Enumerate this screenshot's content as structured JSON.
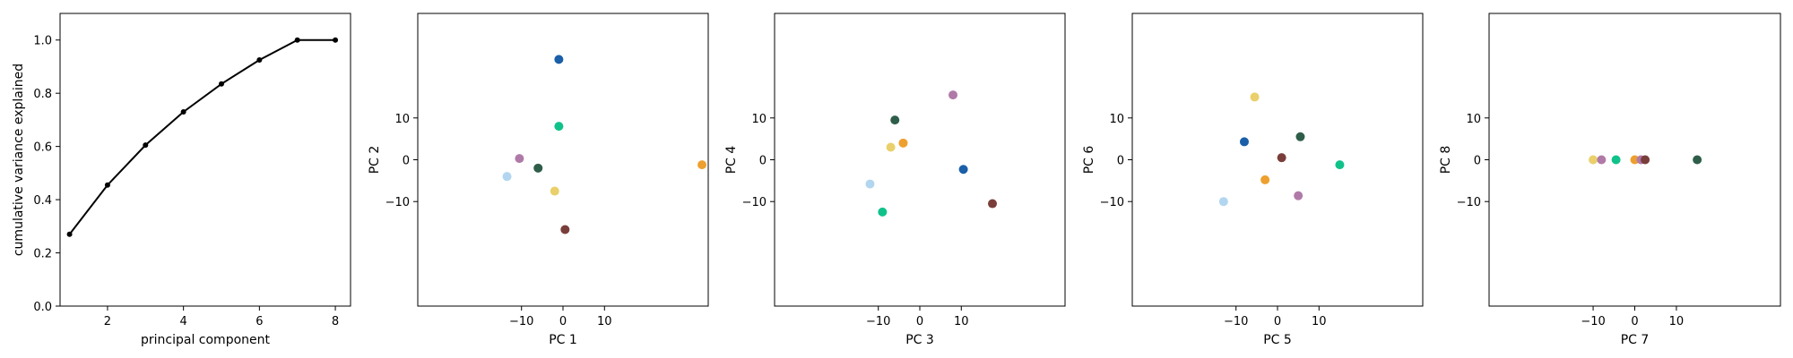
{
  "chart_data": [
    {
      "type": "line",
      "xlabel": "principal component",
      "ylabel": "cumulative variance explained",
      "xlim": [
        0.75,
        8.4
      ],
      "ylim": [
        0.0,
        1.1
      ],
      "xticks": [
        "2",
        "4",
        "6",
        "8"
      ],
      "yticks": [
        "0.0",
        "0.2",
        "0.4",
        "0.6",
        "0.8",
        "1.0"
      ],
      "x": [
        1,
        2,
        3,
        4,
        5,
        6,
        7,
        8
      ],
      "y": [
        0.27,
        0.455,
        0.605,
        0.73,
        0.835,
        0.925,
        1.0,
        1.0
      ],
      "line_color": "#000000"
    },
    {
      "type": "scatter",
      "xlabel": "PC 1",
      "ylabel": "PC 2",
      "xlim": [
        -35,
        35
      ],
      "ylim": [
        -35,
        35
      ],
      "xticks": [
        "−10",
        "0",
        "10"
      ],
      "yticks": [
        "−10",
        "0",
        "10"
      ],
      "points": [
        {
          "x": -1,
          "y": 24,
          "color": "#1a5fa8"
        },
        {
          "x": -1,
          "y": 8,
          "color": "#10c28a"
        },
        {
          "x": -10.5,
          "y": 0.3,
          "color": "#b07aa8"
        },
        {
          "x": -13.5,
          "y": -4,
          "color": "#b2d6f0"
        },
        {
          "x": -6,
          "y": -2,
          "color": "#2e5e4a"
        },
        {
          "x": -2,
          "y": -7.5,
          "color": "#ead06a"
        },
        {
          "x": 0.5,
          "y": -16.7,
          "color": "#7a3e3a"
        },
        {
          "x": 33.5,
          "y": -1.2,
          "color": "#eda02f"
        }
      ]
    },
    {
      "type": "scatter",
      "xlabel": "PC 3",
      "ylabel": "PC 4",
      "xlim": [
        -35,
        35
      ],
      "ylim": [
        -35,
        35
      ],
      "xticks": [
        "−10",
        "0",
        "10"
      ],
      "yticks": [
        "−10",
        "0",
        "10"
      ],
      "points": [
        {
          "x": 8,
          "y": 15.5,
          "color": "#b07aa8"
        },
        {
          "x": -6,
          "y": 9.5,
          "color": "#2e5e4a"
        },
        {
          "x": -4,
          "y": 4,
          "color": "#eda02f"
        },
        {
          "x": -7,
          "y": 3,
          "color": "#ead06a"
        },
        {
          "x": 10.5,
          "y": -2.3,
          "color": "#1a5fa8"
        },
        {
          "x": -12,
          "y": -5.8,
          "color": "#b2d6f0"
        },
        {
          "x": -9,
          "y": -12.5,
          "color": "#10c28a"
        },
        {
          "x": 17.5,
          "y": -10.5,
          "color": "#7a3e3a"
        }
      ]
    },
    {
      "type": "scatter",
      "xlabel": "PC 5",
      "ylabel": "PC 6",
      "xlim": [
        -35,
        35
      ],
      "ylim": [
        -35,
        35
      ],
      "xticks": [
        "−10",
        "0",
        "10"
      ],
      "yticks": [
        "−10",
        "0",
        "10"
      ],
      "points": [
        {
          "x": -5.5,
          "y": 15,
          "color": "#ead06a"
        },
        {
          "x": 5.5,
          "y": 5.5,
          "color": "#2e5e4a"
        },
        {
          "x": -8,
          "y": 4.3,
          "color": "#1a5fa8"
        },
        {
          "x": 1,
          "y": 0.5,
          "color": "#7a3e3a"
        },
        {
          "x": 15,
          "y": -1.2,
          "color": "#10c28a"
        },
        {
          "x": -3,
          "y": -4.8,
          "color": "#eda02f"
        },
        {
          "x": 5,
          "y": -8.6,
          "color": "#b07aa8"
        },
        {
          "x": -13,
          "y": -10,
          "color": "#b2d6f0"
        }
      ]
    },
    {
      "type": "scatter",
      "xlabel": "PC 7",
      "ylabel": "PC 8",
      "xlim": [
        -35,
        35
      ],
      "ylim": [
        -35,
        35
      ],
      "xticks": [
        "−10",
        "0",
        "10"
      ],
      "yticks": [
        "−10",
        "0",
        "10"
      ],
      "points": [
        {
          "x": -10,
          "y": 0,
          "color": "#ead06a"
        },
        {
          "x": -8,
          "y": 0,
          "color": "#b07aa8"
        },
        {
          "x": -4.5,
          "y": 0,
          "color": "#10c28a"
        },
        {
          "x": 0,
          "y": 0,
          "color": "#eda02f"
        },
        {
          "x": 1.5,
          "y": 0,
          "color": "#b07aa8"
        },
        {
          "x": 2.5,
          "y": 0,
          "color": "#7a3e3a"
        },
        {
          "x": 15,
          "y": 0,
          "color": "#2e5e4a"
        }
      ]
    }
  ]
}
